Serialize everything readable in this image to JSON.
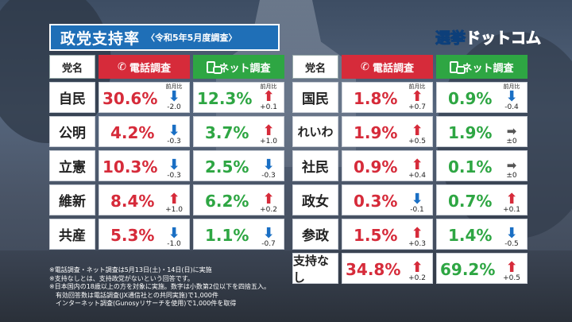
{
  "title": {
    "main": "政党支持率",
    "sub": "〈令和5年5月度調査〉"
  },
  "logo": {
    "part1": "選挙",
    "part2": "ドットコム",
    "colors": {
      "part1": "#ffd400",
      "accent": "#e8384f",
      "part3": "#29a9e1"
    }
  },
  "headers": {
    "party": "党名",
    "phone": "電話調査",
    "net": "ネット調査",
    "phone_icon": "phone-icon",
    "net_icon": "smartphone-icon"
  },
  "change_label": "前月比",
  "left_rows": [
    {
      "party": "自民",
      "phone": "30.6%",
      "phone_dir": "down",
      "phone_chg": "-2.0",
      "net": "12.3%",
      "net_dir": "up",
      "net_chg": "+0.1"
    },
    {
      "party": "公明",
      "phone": "4.2%",
      "phone_dir": "down",
      "phone_chg": "-0.3",
      "net": "3.7%",
      "net_dir": "up",
      "net_chg": "+1.0"
    },
    {
      "party": "立憲",
      "phone": "10.3%",
      "phone_dir": "down",
      "phone_chg": "-0.3",
      "net": "2.5%",
      "net_dir": "down",
      "net_chg": "-0.3"
    },
    {
      "party": "維新",
      "phone": "8.4%",
      "phone_dir": "up",
      "phone_chg": "+1.0",
      "net": "6.2%",
      "net_dir": "up",
      "net_chg": "+0.2"
    },
    {
      "party": "共産",
      "phone": "5.3%",
      "phone_dir": "down",
      "phone_chg": "-1.0",
      "net": "1.1%",
      "net_dir": "down",
      "net_chg": "-0.7"
    }
  ],
  "right_rows": [
    {
      "party": "国民",
      "phone": "1.8%",
      "phone_dir": "up",
      "phone_chg": "+0.7",
      "net": "0.9%",
      "net_dir": "down",
      "net_chg": "-0.4"
    },
    {
      "party": "れいわ",
      "phone": "1.9%",
      "phone_dir": "up",
      "phone_chg": "+0.5",
      "net": "1.9%",
      "net_dir": "flat",
      "net_chg": "±0"
    },
    {
      "party": "社民",
      "phone": "0.9%",
      "phone_dir": "up",
      "phone_chg": "+0.4",
      "net": "0.1%",
      "net_dir": "flat",
      "net_chg": "±0"
    },
    {
      "party": "政女",
      "phone": "0.3%",
      "phone_dir": "down",
      "phone_chg": "-0.1",
      "net": "0.7%",
      "net_dir": "up",
      "net_chg": "+0.1"
    },
    {
      "party": "参政",
      "phone": "1.5%",
      "phone_dir": "up",
      "phone_chg": "+0.3",
      "net": "1.4%",
      "net_dir": "down",
      "net_chg": "-0.5"
    },
    {
      "party": "支持なし",
      "phone": "34.8%",
      "phone_dir": "up",
      "phone_chg": "+0.2",
      "net": "69.2%",
      "net_dir": "up",
      "net_chg": "+0.5"
    }
  ],
  "notes": [
    "※電話調査・ネット調査は5月13日(土)・14日(日)に実施",
    "※支持なしとは、支持政党がないという回答です。",
    "※日本国内の18歳以上の方を対象に実施。数字は小数第2位以下を四捨五入。",
    "　有効回答数は電話調査(JX通信社との共同実施)で1,000件",
    "　インターネット調査(Gunosyリサーチを使用)で1,000件を取得"
  ],
  "colors": {
    "phone": "#d62b3a",
    "net": "#2ea643",
    "title_bg": "#1f6fb7",
    "arrow_up": "#d62b3a",
    "arrow_down": "#1a6fc4"
  }
}
